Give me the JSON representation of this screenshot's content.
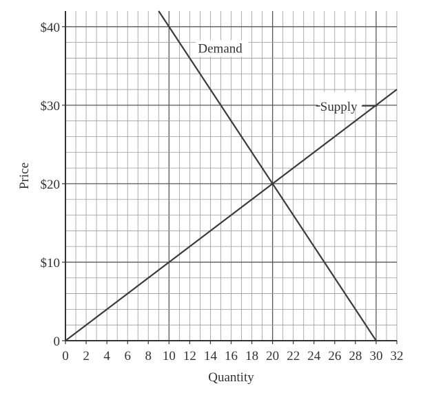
{
  "chart_data": {
    "type": "line",
    "xlabel": "Quantity",
    "ylabel": "Price",
    "xlim": [
      0,
      32
    ],
    "ylim": [
      0,
      42
    ],
    "x_ticks": [
      0,
      2,
      4,
      6,
      8,
      10,
      12,
      14,
      16,
      18,
      20,
      22,
      24,
      26,
      28,
      30,
      32
    ],
    "x_tick_labels": [
      "0",
      "2",
      "4",
      "6",
      "8",
      "10",
      "12",
      "14",
      "16",
      "18",
      "20",
      "22",
      "24",
      "26",
      "28",
      "30",
      "32"
    ],
    "y_ticks": [
      0,
      10,
      20,
      30,
      40
    ],
    "y_tick_labels": [
      "0",
      "$10",
      "$20",
      "$30",
      "$40"
    ],
    "grid": true,
    "minor_grid": {
      "x_step": 1,
      "y_step": 2
    },
    "major_grid": {
      "x_step": 10,
      "y_step": 10
    },
    "series": [
      {
        "name": "Demand",
        "x": [
          9,
          30
        ],
        "y": [
          42,
          0
        ],
        "color": "#3a3a3a"
      },
      {
        "name": "Supply",
        "x": [
          0,
          32
        ],
        "y": [
          0,
          32
        ],
        "color": "#3a3a3a"
      }
    ],
    "annotations": [
      {
        "text": "Demand",
        "series": "Demand"
      },
      {
        "text": "Supply",
        "series": "Supply"
      }
    ]
  }
}
